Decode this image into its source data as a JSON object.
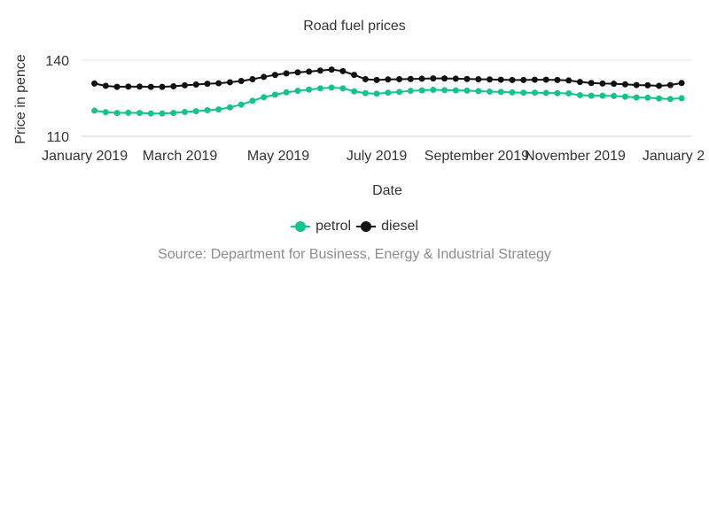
{
  "chart_data": {
    "type": "line",
    "title": "Road fuel prices",
    "xlabel": "Date",
    "ylabel": "Price in pence",
    "yticks": [
      110,
      140
    ],
    "ylim": [
      110,
      140
    ],
    "xtick_labels": [
      "January 2019",
      "March 2019",
      "May 2019",
      "July 2019",
      "September 2019",
      "November 2019",
      "January 2"
    ],
    "legend_position": "bottom-center",
    "grid": "horizontal",
    "colors": {
      "petrol": "#12c48b",
      "diesel": "#111111"
    },
    "x": [
      "2019-01-07",
      "2019-01-14",
      "2019-01-21",
      "2019-01-28",
      "2019-02-04",
      "2019-02-11",
      "2019-02-18",
      "2019-02-25",
      "2019-03-04",
      "2019-03-11",
      "2019-03-18",
      "2019-03-25",
      "2019-04-01",
      "2019-04-08",
      "2019-04-15",
      "2019-04-22",
      "2019-04-29",
      "2019-05-06",
      "2019-05-13",
      "2019-05-20",
      "2019-05-27",
      "2019-06-03",
      "2019-06-10",
      "2019-06-17",
      "2019-06-24",
      "2019-07-01",
      "2019-07-08",
      "2019-07-15",
      "2019-07-22",
      "2019-07-29",
      "2019-08-05",
      "2019-08-12",
      "2019-08-19",
      "2019-08-26",
      "2019-09-02",
      "2019-09-09",
      "2019-09-16",
      "2019-09-23",
      "2019-09-30",
      "2019-10-07",
      "2019-10-14",
      "2019-10-21",
      "2019-10-28",
      "2019-11-04",
      "2019-11-11",
      "2019-11-18",
      "2019-11-25",
      "2019-12-02",
      "2019-12-09",
      "2019-12-16",
      "2019-12-23",
      "2019-12-30",
      "2020-01-06"
    ],
    "series": [
      {
        "name": "petrol",
        "values": [
          120.1,
          119.5,
          119.2,
          119.3,
          119.2,
          119.0,
          119.0,
          119.2,
          119.6,
          119.9,
          120.3,
          120.6,
          121.4,
          122.5,
          124.0,
          125.4,
          126.4,
          127.3,
          127.9,
          128.4,
          128.9,
          129.2,
          128.9,
          127.7,
          127.0,
          126.8,
          127.2,
          127.5,
          127.9,
          128.1,
          128.3,
          128.2,
          128.1,
          128.0,
          127.8,
          127.6,
          127.5,
          127.3,
          127.2,
          127.2,
          127.1,
          127.0,
          126.9,
          126.2,
          126.0,
          126.0,
          125.9,
          125.6,
          125.3,
          125.2,
          124.9,
          124.7,
          125.0
        ]
      },
      {
        "name": "diesel",
        "values": [
          130.8,
          129.9,
          129.5,
          129.6,
          129.6,
          129.5,
          129.5,
          129.7,
          130.1,
          130.4,
          130.7,
          130.9,
          131.3,
          131.8,
          132.5,
          133.4,
          134.2,
          134.8,
          135.2,
          135.5,
          135.9,
          136.3,
          135.7,
          134.2,
          132.5,
          132.2,
          132.4,
          132.5,
          132.6,
          132.7,
          132.8,
          132.8,
          132.7,
          132.6,
          132.5,
          132.4,
          132.3,
          132.2,
          132.2,
          132.3,
          132.3,
          132.2,
          132.0,
          131.4,
          131.0,
          130.8,
          130.7,
          130.5,
          130.2,
          130.1,
          129.9,
          130.2,
          131.0
        ]
      }
    ],
    "source": "Source: Department for Business, Energy & Industrial Strategy"
  }
}
